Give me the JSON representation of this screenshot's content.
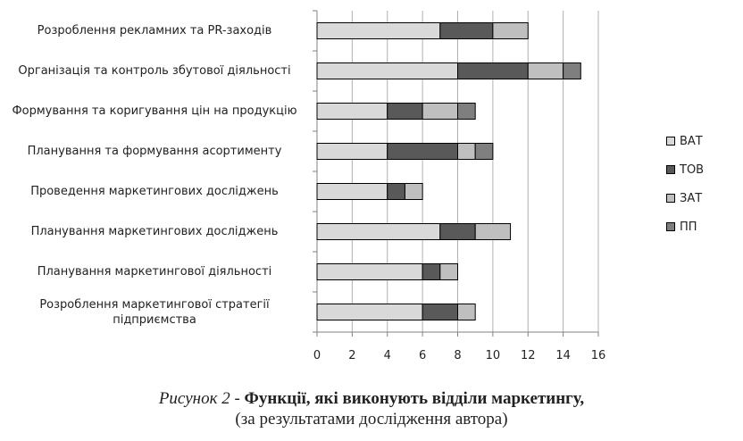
{
  "chart_data": {
    "type": "bar",
    "orientation": "horizontal",
    "stacked": true,
    "categories": [
      "Розроблення рекламних та PR-заходів",
      "Організація та контроль збутової діяльності",
      "Формування та коригування цін на продукцію",
      "Планування та формування асортименту",
      "Проведення  маркетингових досліджень",
      "Планування  маркетингових досліджень",
      "Планування маркетингової діяльності",
      "Розроблення маркетингової стратегії підприємства"
    ],
    "series": [
      {
        "name": "ВАТ",
        "color": "#d9d9d9",
        "values": [
          7,
          8,
          4,
          4,
          4,
          7,
          6,
          6
        ]
      },
      {
        "name": "ТОВ",
        "color": "#595959",
        "values": [
          3,
          4,
          2,
          4,
          1,
          2,
          1,
          2
        ]
      },
      {
        "name": "ЗАТ",
        "color": "#bfbfbf",
        "values": [
          2,
          2,
          2,
          1,
          1,
          2,
          1,
          1
        ]
      },
      {
        "name": "ПП",
        "color": "#7f7f7f",
        "values": [
          0,
          1,
          1,
          1,
          0,
          0,
          0,
          0
        ]
      }
    ],
    "xlim": [
      0,
      16
    ],
    "xticks": [
      "0",
      "2",
      "4",
      "6",
      "8",
      "10",
      "12",
      "14",
      "16"
    ],
    "grid": "vertical",
    "legend_position": "right"
  },
  "caption": {
    "line1_italic": "Рисунок 2",
    "line1_sep": " - ",
    "line1_bold": "Функції, які виконують відділи маркетингу,",
    "line2": "(за результатами дослідження автора)"
  }
}
